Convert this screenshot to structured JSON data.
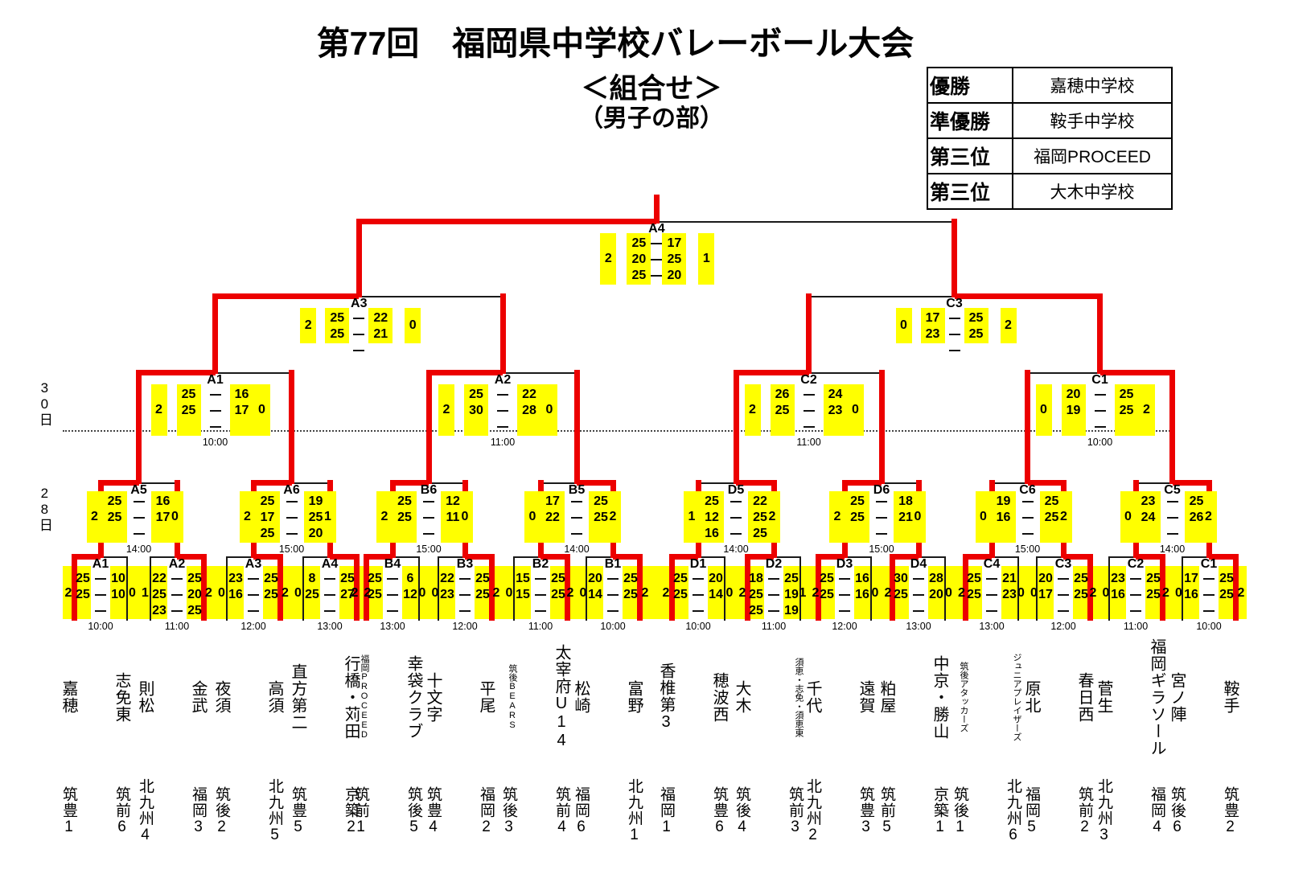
{
  "title": "第77回　福岡県中学校バレーボール大会",
  "subtitle": "＜組合せ＞",
  "division": "（男子の部）",
  "standings": [
    {
      "rank": "優勝",
      "team": "嘉穂中学校"
    },
    {
      "rank": "準優勝",
      "team": "鞍手中学校"
    },
    {
      "rank": "第三位",
      "team": "福岡PROCEED"
    },
    {
      "rank": "第三位",
      "team": "大木中学校"
    }
  ],
  "day_labels": {
    "quarterfinal_day": "30日",
    "first_day": "28日"
  },
  "teams": [
    {
      "name": "嘉穂",
      "league": "筑豊1"
    },
    {
      "name": "志免東",
      "league": "筑前6"
    },
    {
      "name": "則松",
      "league": "北九州4"
    },
    {
      "name": "金武",
      "league": "福岡3"
    },
    {
      "name": "夜須",
      "league": "筑後2"
    },
    {
      "name": "高須",
      "league": "北九州5"
    },
    {
      "name": "直方第二",
      "league": "筑豊5"
    },
    {
      "name": "行橋・苅田",
      "league": "京築2"
    },
    {
      "name": "福岡PROCEED",
      "league": "筑前1",
      "small": true
    },
    {
      "name": "幸袋クラブ",
      "league": "筑後5"
    },
    {
      "name": "十文字",
      "league": "筑豊4"
    },
    {
      "name": "平尾",
      "league": "福岡2"
    },
    {
      "name": "筑後BEARS",
      "league": "筑後3",
      "small": true
    },
    {
      "name": "太宰府U14",
      "league": "筑前4"
    },
    {
      "name": "松崎",
      "league": "福岡6"
    },
    {
      "name": "富野",
      "league": "北九州1"
    },
    {
      "name": "香椎第3",
      "league": "福岡1"
    },
    {
      "name": "穂波西",
      "league": "筑豊6"
    },
    {
      "name": "大木",
      "league": "筑後4"
    },
    {
      "name": "須恵・志免・須恵東",
      "league": "筑前3",
      "small": true
    },
    {
      "name": "千代",
      "league": "北九州2"
    },
    {
      "name": "遠賀",
      "league": "筑豊3"
    },
    {
      "name": "粕屋",
      "league": "筑前5"
    },
    {
      "name": "中京・勝山",
      "league": "京築1"
    },
    {
      "name": "筑後アタッカーズ",
      "league": "筑後1",
      "small": true
    },
    {
      "name": "ジュニアプレイザーズ",
      "league": "北九州6",
      "small": true
    },
    {
      "name": "原北",
      "league": "福岡5"
    },
    {
      "name": "春日西",
      "league": "筑前2"
    },
    {
      "name": "菅生",
      "league": "北九州3"
    },
    {
      "name": "福岡ギラソール",
      "league": "福岡4"
    },
    {
      "name": "宮ノ陣",
      "league": "筑後6"
    },
    {
      "name": "鞍手",
      "league": "筑豊2"
    }
  ],
  "rounds": {
    "round1": [
      {
        "label": "A1",
        "time": "10:00",
        "left_scores": [
          25,
          25
        ],
        "right_scores": [
          10,
          10
        ],
        "left_sets": 2,
        "right_sets": 0,
        "winner": "L"
      },
      {
        "label": "A2",
        "time": "11:00",
        "left_scores": [
          22,
          25,
          23
        ],
        "right_scores": [
          25,
          20,
          25
        ],
        "left_sets": 1,
        "right_sets": 2,
        "winner": "R"
      },
      {
        "label": "A3",
        "time": "12:00",
        "left_scores": [
          23,
          16
        ],
        "right_scores": [
          25,
          25
        ],
        "left_sets": 0,
        "right_sets": 2,
        "winner": "R"
      },
      {
        "label": "A4",
        "time": "13:00",
        "left_scores": [
          8,
          25
        ],
        "right_scores": [
          25,
          27
        ],
        "left_sets": 0,
        "right_sets": 2,
        "winner": "R"
      },
      {
        "label": "B4",
        "time": "13:00",
        "left_scores": [
          25,
          25
        ],
        "right_scores": [
          6,
          12
        ],
        "left_sets": 2,
        "right_sets": 0,
        "winner": "L"
      },
      {
        "label": "B3",
        "time": "12:00",
        "left_scores": [
          22,
          23
        ],
        "right_scores": [
          25,
          25
        ],
        "left_sets": 0,
        "right_sets": 2,
        "winner": "R"
      },
      {
        "label": "B2",
        "time": "11:00",
        "left_scores": [
          15,
          15
        ],
        "right_scores": [
          25,
          25
        ],
        "left_sets": 0,
        "right_sets": 2,
        "winner": "R"
      },
      {
        "label": "B1",
        "time": "10:00",
        "left_scores": [
          20,
          14
        ],
        "right_scores": [
          25,
          25
        ],
        "left_sets": 0,
        "right_sets": 2,
        "winner": "R"
      },
      {
        "label": "D1",
        "time": "10:00",
        "left_scores": [
          25,
          25
        ],
        "right_scores": [
          20,
          14
        ],
        "left_sets": 2,
        "right_sets": 0,
        "winner": "L"
      },
      {
        "label": "D2",
        "time": "11:00",
        "left_scores": [
          18,
          25,
          25
        ],
        "right_scores": [
          25,
          19,
          19
        ],
        "left_sets": 2,
        "right_sets": 1,
        "winner": "L"
      },
      {
        "label": "D3",
        "time": "12:00",
        "left_scores": [
          25,
          25
        ],
        "right_scores": [
          16,
          16
        ],
        "left_sets": 2,
        "right_sets": 0,
        "winner": "L"
      },
      {
        "label": "D4",
        "time": "13:00",
        "left_scores": [
          30,
          25
        ],
        "right_scores": [
          28,
          20
        ],
        "left_sets": 2,
        "right_sets": 0,
        "winner": "L"
      },
      {
        "label": "C4",
        "time": "13:00",
        "left_scores": [
          25,
          25
        ],
        "right_scores": [
          21,
          23
        ],
        "left_sets": 2,
        "right_sets": 0,
        "winner": "L"
      },
      {
        "label": "C3",
        "time": "12:00",
        "left_scores": [
          20,
          17
        ],
        "right_scores": [
          25,
          25
        ],
        "left_sets": 0,
        "right_sets": 2,
        "winner": "R"
      },
      {
        "label": "C2",
        "time": "11:00",
        "left_scores": [
          23,
          16
        ],
        "right_scores": [
          25,
          25
        ],
        "left_sets": 0,
        "right_sets": 2,
        "winner": "R"
      },
      {
        "label": "C1",
        "time": "10:00",
        "left_scores": [
          17,
          16
        ],
        "right_scores": [
          25,
          25
        ],
        "left_sets": 0,
        "right_sets": 2,
        "winner": "R"
      }
    ],
    "round2": [
      {
        "label": "A5",
        "time": "14:00",
        "left_scores": [
          25,
          25
        ],
        "right_scores": [
          16,
          17
        ],
        "left_sets": 2,
        "right_sets": 0,
        "winner": "L"
      },
      {
        "label": "A6",
        "time": "15:00",
        "left_scores": [
          25,
          17,
          25
        ],
        "right_scores": [
          19,
          25,
          20
        ],
        "left_sets": 2,
        "right_sets": 1,
        "winner": "L"
      },
      {
        "label": "B6",
        "time": "15:00",
        "left_scores": [
          25,
          25
        ],
        "right_scores": [
          12,
          11
        ],
        "left_sets": 2,
        "right_sets": 0,
        "winner": "L"
      },
      {
        "label": "B5",
        "time": "14:00",
        "left_scores": [
          17,
          22
        ],
        "right_scores": [
          25,
          25
        ],
        "left_sets": 0,
        "right_sets": 2,
        "winner": "R"
      },
      {
        "label": "D5",
        "time": "14:00",
        "left_scores": [
          25,
          12,
          16
        ],
        "right_scores": [
          22,
          25,
          25
        ],
        "left_sets": 1,
        "right_sets": 2,
        "winner": "R"
      },
      {
        "label": "D6",
        "time": "15:00",
        "left_scores": [
          25,
          25
        ],
        "right_scores": [
          18,
          21
        ],
        "left_sets": 2,
        "right_sets": 0,
        "winner": "L"
      },
      {
        "label": "C6",
        "time": "15:00",
        "left_scores": [
          19,
          16
        ],
        "right_scores": [
          25,
          25
        ],
        "left_sets": 0,
        "right_sets": 2,
        "winner": "R"
      },
      {
        "label": "C5",
        "time": "14:00",
        "left_scores": [
          23,
          24
        ],
        "right_scores": [
          25,
          26
        ],
        "left_sets": 0,
        "right_sets": 2,
        "winner": "R"
      }
    ],
    "quarterfinals": [
      {
        "label": "A1",
        "time": "10:00",
        "left_scores": [
          25,
          25
        ],
        "right_scores": [
          16,
          17
        ],
        "left_sets": 2,
        "right_sets": 0,
        "winner": "L"
      },
      {
        "label": "A2",
        "time": "11:00",
        "left_scores": [
          25,
          30
        ],
        "right_scores": [
          22,
          28
        ],
        "left_sets": 2,
        "right_sets": 0,
        "winner": "L"
      },
      {
        "label": "C2",
        "time": "11:00",
        "left_scores": [
          26,
          25
        ],
        "right_scores": [
          24,
          23
        ],
        "left_sets": 2,
        "right_sets": 0,
        "winner": "L"
      },
      {
        "label": "C1",
        "time": "10:00",
        "left_scores": [
          20,
          19
        ],
        "right_scores": [
          25,
          25
        ],
        "left_sets": 0,
        "right_sets": 2,
        "winner": "R"
      }
    ],
    "semifinals": [
      {
        "label": "A3",
        "left_scores": [
          25,
          25
        ],
        "right_scores": [
          22,
          21
        ],
        "left_sets": 2,
        "right_sets": 0,
        "winner": "L"
      },
      {
        "label": "C3",
        "left_scores": [
          17,
          23
        ],
        "right_scores": [
          25,
          25
        ],
        "left_sets": 0,
        "right_sets": 2,
        "winner": "R"
      }
    ],
    "final": [
      {
        "label": "A4",
        "left_scores": [
          25,
          20,
          25
        ],
        "right_scores": [
          17,
          25,
          20
        ],
        "left_sets": 2,
        "right_sets": 1,
        "winner": "L"
      }
    ]
  }
}
